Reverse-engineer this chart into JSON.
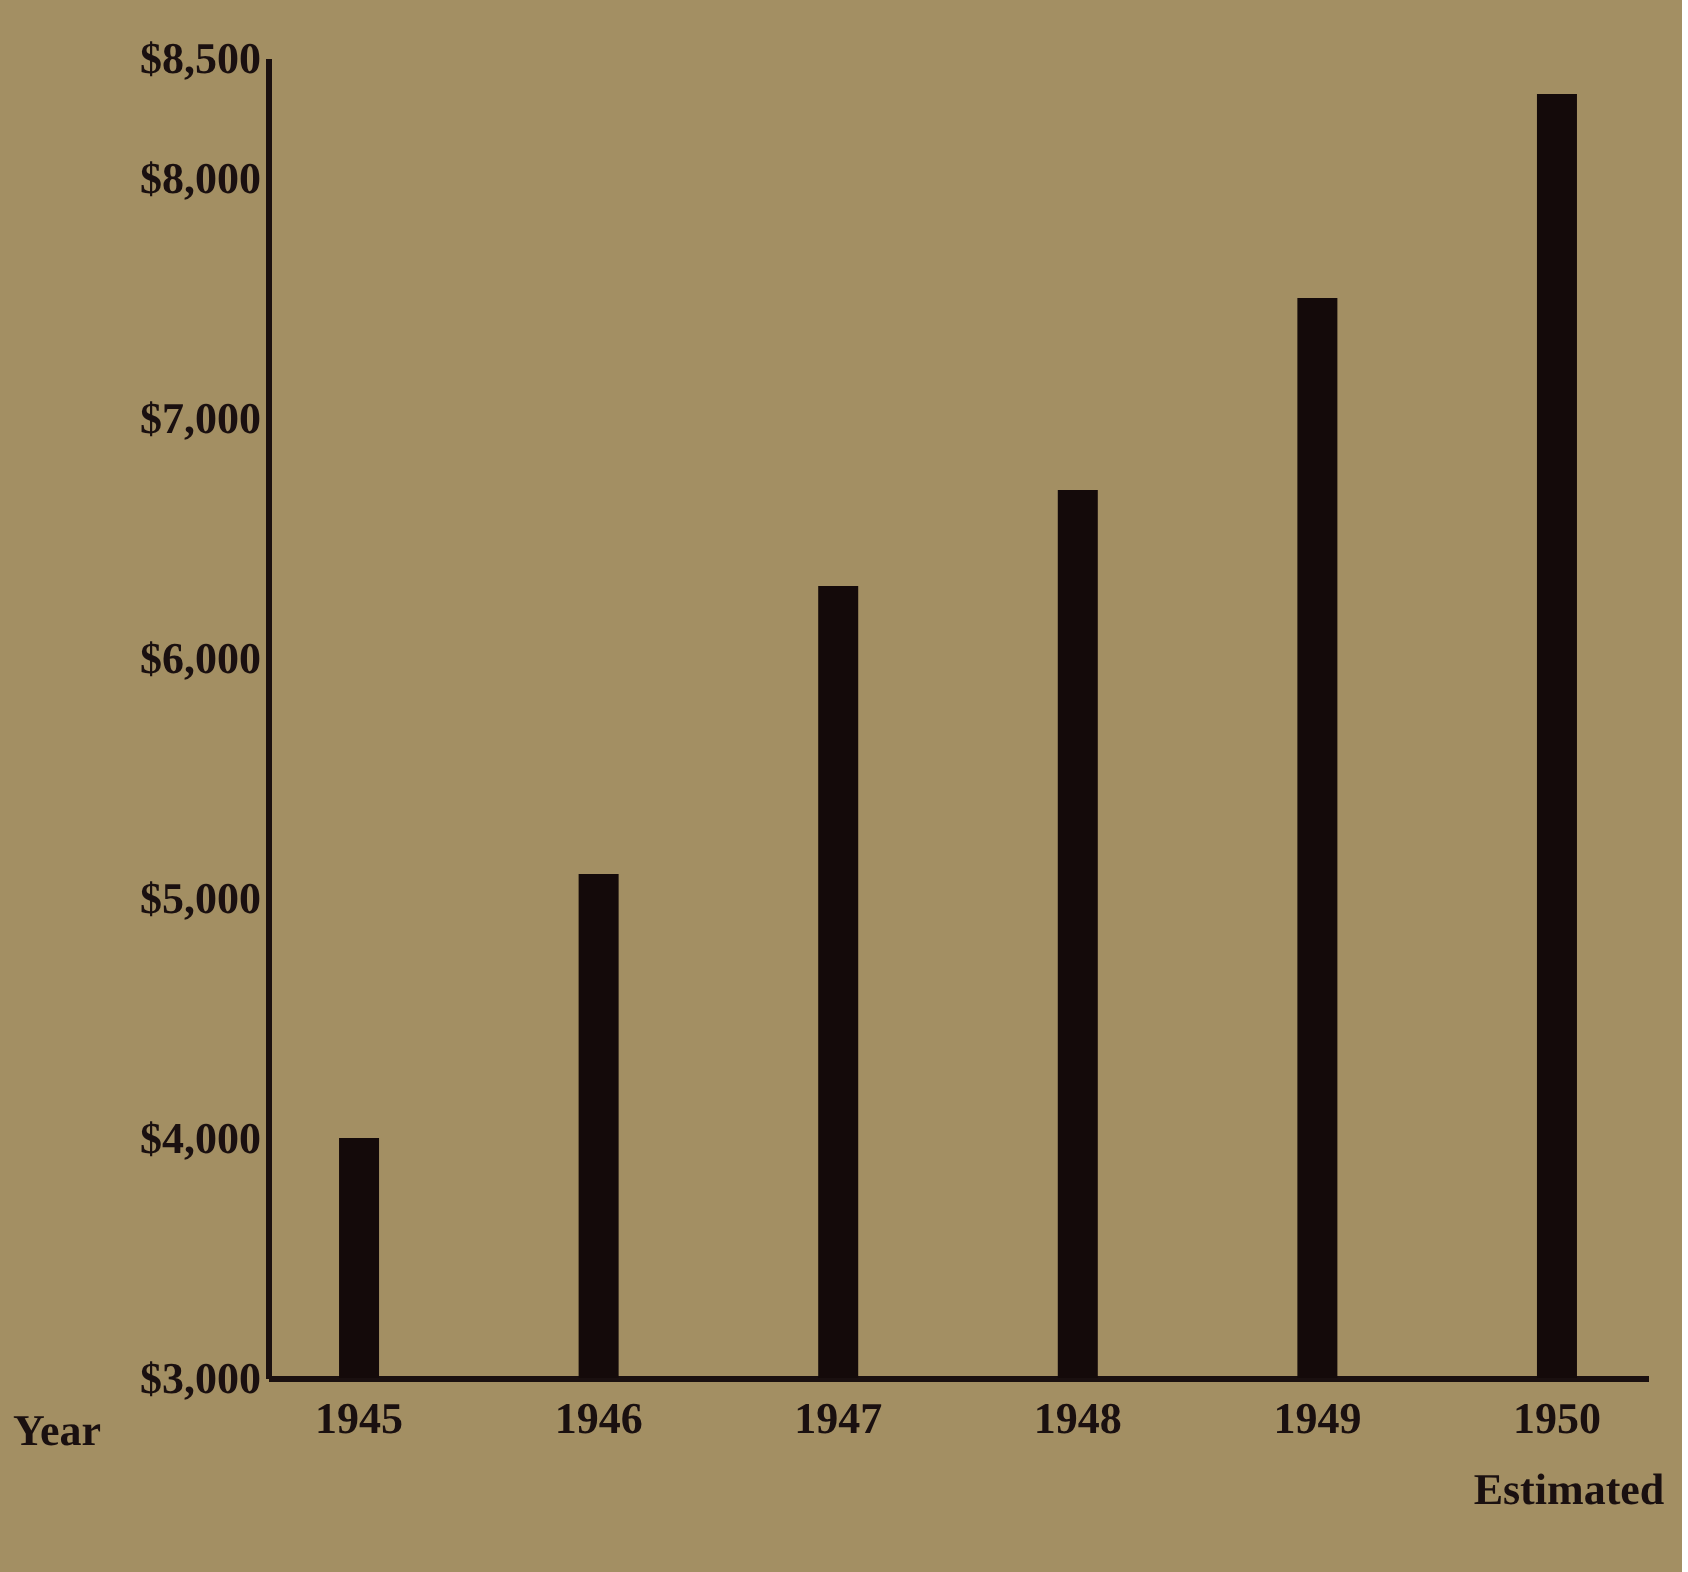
{
  "chart_data": {
    "type": "bar",
    "xlabel": "Year",
    "categories": [
      "1945",
      "1946",
      "1947",
      "1948",
      "1949",
      "1950"
    ],
    "values": [
      4000,
      5100,
      6300,
      6700,
      7500,
      8350
    ],
    "color": "#140a0a",
    "ylim": [
      3000,
      8500
    ],
    "yticks": [
      {
        "value": 3000,
        "label": "$3,000"
      },
      {
        "value": 4000,
        "label": "$4,000"
      },
      {
        "value": 5000,
        "label": "$5,000"
      },
      {
        "value": 6000,
        "label": "$6,000"
      },
      {
        "value": 7000,
        "label": "$7,000"
      },
      {
        "value": 8000,
        "label": "$8,000"
      },
      {
        "value": 8500,
        "label": "$8,500"
      }
    ],
    "annotations": [
      "Estimated"
    ],
    "grid": false
  }
}
